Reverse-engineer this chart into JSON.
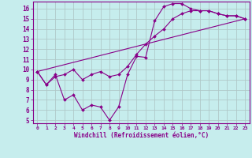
{
  "xlabel": "Windchill (Refroidissement éolien,°C)",
  "background_color": "#c6eded",
  "grid_color": "#b0c8c8",
  "line_color": "#880088",
  "xlim": [
    -0.5,
    23.5
  ],
  "ylim": [
    4.7,
    16.7
  ],
  "xticks": [
    0,
    1,
    2,
    3,
    4,
    5,
    6,
    7,
    8,
    9,
    10,
    11,
    12,
    13,
    14,
    15,
    16,
    17,
    18,
    19,
    20,
    21,
    22,
    23
  ],
  "yticks": [
    5,
    6,
    7,
    8,
    9,
    10,
    11,
    12,
    13,
    14,
    15,
    16
  ],
  "line1_x": [
    0,
    1,
    2,
    3,
    4,
    5,
    6,
    7,
    8,
    9,
    10,
    11,
    12,
    13,
    14,
    15,
    16,
    17,
    18,
    19,
    20,
    21,
    22,
    23
  ],
  "line1_y": [
    9.8,
    8.5,
    9.5,
    7.0,
    7.5,
    6.0,
    6.5,
    6.3,
    5.0,
    6.3,
    9.5,
    11.3,
    11.2,
    14.8,
    16.2,
    16.5,
    16.5,
    16.0,
    15.8,
    15.8,
    15.5,
    15.3,
    15.3,
    15.0
  ],
  "line2_x": [
    0,
    1,
    2,
    3,
    4,
    5,
    6,
    7,
    8,
    9,
    10,
    11,
    12,
    13,
    14,
    15,
    16,
    17,
    18,
    19,
    20,
    21,
    22,
    23
  ],
  "line2_y": [
    9.8,
    8.5,
    9.3,
    9.5,
    10.0,
    9.0,
    9.5,
    9.8,
    9.3,
    9.5,
    10.3,
    11.5,
    12.5,
    13.3,
    14.0,
    15.0,
    15.5,
    15.8,
    15.8,
    15.8,
    15.5,
    15.3,
    15.3,
    15.0
  ],
  "line3_x": [
    0,
    23
  ],
  "line3_y": [
    9.8,
    15.0
  ]
}
